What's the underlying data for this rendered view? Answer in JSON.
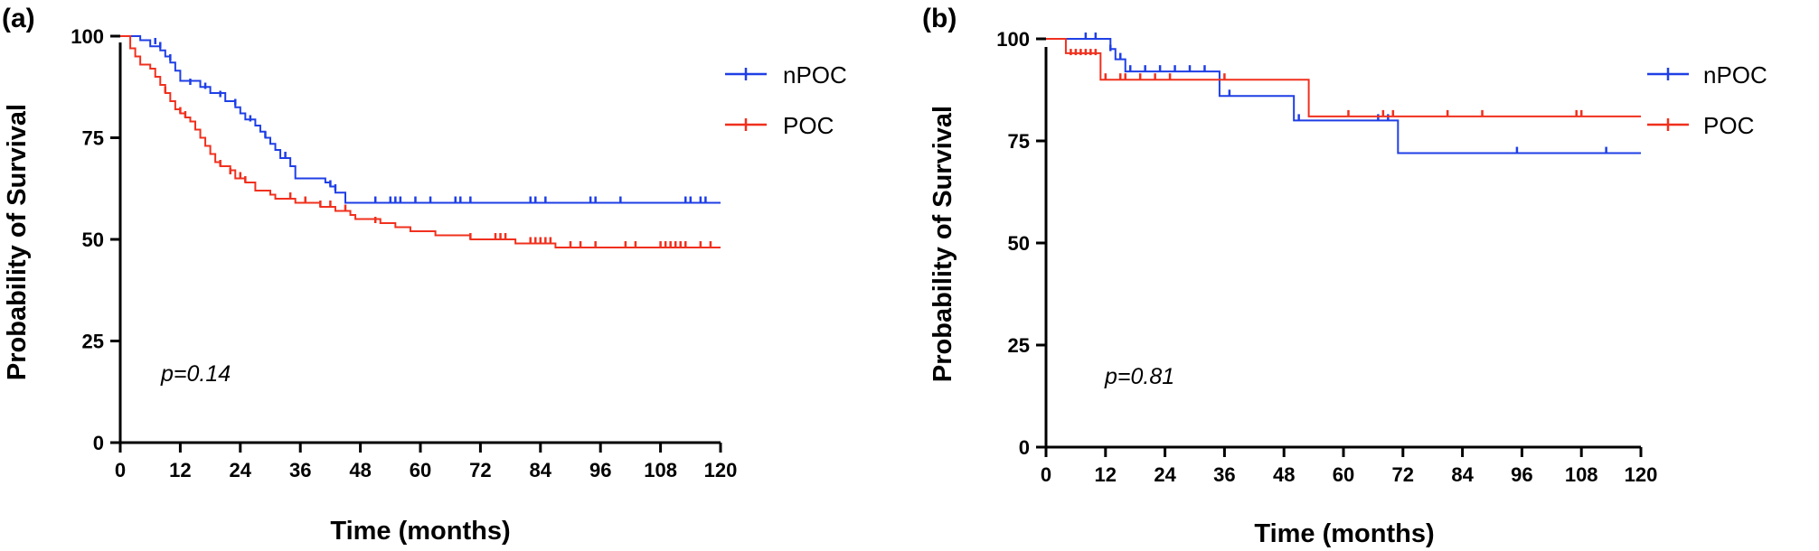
{
  "colors": {
    "nPOC": "#1f3fe6",
    "POC": "#f0301e",
    "axis": "#000000"
  },
  "chart_data": [
    {
      "panel_label": "(a)",
      "type": "line",
      "subtype": "kaplan-meier",
      "xlabel": "Time (months)",
      "ylabel": "Probability of Survival",
      "xlim": [
        0,
        120
      ],
      "ylim": [
        0,
        100
      ],
      "xticks": [
        "0",
        "12",
        "24",
        "36",
        "48",
        "60",
        "72",
        "84",
        "96",
        "108",
        "120"
      ],
      "yticks": [
        "0",
        "25",
        "50",
        "75",
        "100"
      ],
      "annotation": "p=0.14",
      "legend": [
        "nPOC",
        "POC"
      ],
      "series": [
        {
          "name": "nPOC",
          "color": "#1f3fe6",
          "steps": [
            [
              0,
              100
            ],
            [
              4,
              99
            ],
            [
              6,
              97.5
            ],
            [
              8,
              96.5
            ],
            [
              9,
              95
            ],
            [
              10,
              93.5
            ],
            [
              11,
              91.5
            ],
            [
              12,
              89
            ],
            [
              16,
              87.5
            ],
            [
              18,
              86
            ],
            [
              21,
              84
            ],
            [
              23,
              82.5
            ],
            [
              24,
              81
            ],
            [
              25,
              79.5
            ],
            [
              27,
              78
            ],
            [
              28,
              76.5
            ],
            [
              29,
              75
            ],
            [
              30,
              73.5
            ],
            [
              31,
              72
            ],
            [
              32,
              70
            ],
            [
              34,
              68
            ],
            [
              35,
              65
            ],
            [
              41,
              64
            ],
            [
              42,
              63
            ],
            [
              43,
              61.5
            ],
            [
              45,
              59
            ],
            [
              120,
              59
            ]
          ],
          "censor": [
            [
              7,
              98
            ],
            [
              8,
              97
            ],
            [
              10,
              94
            ],
            [
              14,
              88
            ],
            [
              17,
              87
            ],
            [
              20,
              85
            ],
            [
              23,
              83
            ],
            [
              26,
              79
            ],
            [
              29,
              75
            ],
            [
              33,
              70
            ],
            [
              42,
              63
            ],
            [
              43,
              62
            ],
            [
              51,
              59
            ],
            [
              54,
              59
            ],
            [
              55,
              59
            ],
            [
              56,
              59
            ],
            [
              59,
              59
            ],
            [
              62,
              59
            ],
            [
              67,
              59
            ],
            [
              68,
              59
            ],
            [
              70,
              59
            ],
            [
              82,
              59
            ],
            [
              83,
              59
            ],
            [
              85,
              59
            ],
            [
              94,
              59
            ],
            [
              95,
              59
            ],
            [
              100,
              59
            ],
            [
              113,
              59
            ],
            [
              114,
              59
            ],
            [
              116,
              59
            ],
            [
              117,
              59
            ]
          ]
        },
        {
          "name": "POC",
          "color": "#f0301e",
          "steps": [
            [
              0,
              100
            ],
            [
              2,
              97
            ],
            [
              3,
              95
            ],
            [
              4,
              93
            ],
            [
              6,
              92
            ],
            [
              7,
              90
            ],
            [
              8,
              88
            ],
            [
              9,
              86
            ],
            [
              10,
              84
            ],
            [
              11,
              82
            ],
            [
              12,
              81
            ],
            [
              13,
              80
            ],
            [
              14,
              79
            ],
            [
              15,
              77
            ],
            [
              16,
              75
            ],
            [
              17,
              73
            ],
            [
              18,
              71
            ],
            [
              19,
              69
            ],
            [
              20,
              68
            ],
            [
              22,
              67
            ],
            [
              23,
              65
            ],
            [
              25,
              64
            ],
            [
              27,
              62
            ],
            [
              30,
              61
            ],
            [
              31,
              60
            ],
            [
              35,
              59
            ],
            [
              40,
              58
            ],
            [
              43,
              57
            ],
            [
              46,
              56
            ],
            [
              47,
              55
            ],
            [
              52,
              54
            ],
            [
              55,
              53
            ],
            [
              58,
              52
            ],
            [
              63,
              51
            ],
            [
              70,
              50
            ],
            [
              79,
              49
            ],
            [
              87,
              48
            ],
            [
              120,
              48
            ]
          ],
          "censor": [
            [
              9,
              86
            ],
            [
              12,
              81
            ],
            [
              13,
              80
            ],
            [
              20,
              68
            ],
            [
              22,
              66
            ],
            [
              24,
              65
            ],
            [
              25,
              64
            ],
            [
              34,
              60
            ],
            [
              37,
              59
            ],
            [
              40,
              58
            ],
            [
              42,
              58
            ],
            [
              45,
              57
            ],
            [
              51,
              54
            ],
            [
              70,
              50
            ],
            [
              75,
              50
            ],
            [
              76,
              50
            ],
            [
              77,
              50
            ],
            [
              82,
              49
            ],
            [
              83,
              49
            ],
            [
              84,
              49
            ],
            [
              85,
              49
            ],
            [
              86,
              49
            ],
            [
              90,
              48
            ],
            [
              92,
              48
            ],
            [
              95,
              48
            ],
            [
              101,
              48
            ],
            [
              103,
              48
            ],
            [
              108,
              48
            ],
            [
              109,
              48
            ],
            [
              110,
              48
            ],
            [
              111,
              48
            ],
            [
              112,
              48
            ],
            [
              113,
              48
            ],
            [
              116,
              48
            ],
            [
              118,
              48
            ]
          ]
        }
      ]
    },
    {
      "panel_label": "(b)",
      "type": "line",
      "subtype": "kaplan-meier",
      "xlabel": "Time (months)",
      "ylabel": "Probability of Survival",
      "xlim": [
        0,
        120
      ],
      "ylim": [
        0,
        100
      ],
      "xticks": [
        "0",
        "12",
        "24",
        "36",
        "48",
        "60",
        "72",
        "84",
        "96",
        "108",
        "120"
      ],
      "yticks": [
        "0",
        "25",
        "50",
        "75",
        "100"
      ],
      "annotation": "p=0.81",
      "legend": [
        "nPOC",
        "POC"
      ],
      "series": [
        {
          "name": "nPOC",
          "color": "#1f3fe6",
          "steps": [
            [
              0,
              100
            ],
            [
              13,
              97.5
            ],
            [
              14,
              95
            ],
            [
              16,
              92
            ],
            [
              35,
              86
            ],
            [
              50,
              80
            ],
            [
              71,
              72
            ],
            [
              120,
              72
            ]
          ],
          "censor": [
            [
              8,
              100
            ],
            [
              10,
              100
            ],
            [
              13,
              97
            ],
            [
              15,
              95
            ],
            [
              17,
              92
            ],
            [
              20,
              92
            ],
            [
              23,
              92
            ],
            [
              26,
              92
            ],
            [
              29,
              92
            ],
            [
              32,
              92
            ],
            [
              37,
              86
            ],
            [
              51,
              80
            ],
            [
              67,
              80
            ],
            [
              69,
              80
            ],
            [
              95,
              72
            ],
            [
              113,
              72
            ]
          ]
        },
        {
          "name": "POC",
          "color": "#f0301e",
          "steps": [
            [
              0,
              100
            ],
            [
              4,
              96.5
            ],
            [
              11,
              90
            ],
            [
              53,
              81
            ],
            [
              120,
              81
            ]
          ],
          "censor": [
            [
              5,
              96
            ],
            [
              6,
              96
            ],
            [
              7,
              96
            ],
            [
              8,
              96
            ],
            [
              9,
              96
            ],
            [
              10,
              96
            ],
            [
              12,
              90
            ],
            [
              15,
              90
            ],
            [
              16,
              90
            ],
            [
              19,
              90
            ],
            [
              22,
              90
            ],
            [
              25,
              90
            ],
            [
              36,
              90
            ],
            [
              61,
              81
            ],
            [
              68,
              81
            ],
            [
              70,
              81
            ],
            [
              81,
              81
            ],
            [
              88,
              81
            ],
            [
              107,
              81
            ],
            [
              108,
              81
            ]
          ]
        }
      ]
    }
  ]
}
